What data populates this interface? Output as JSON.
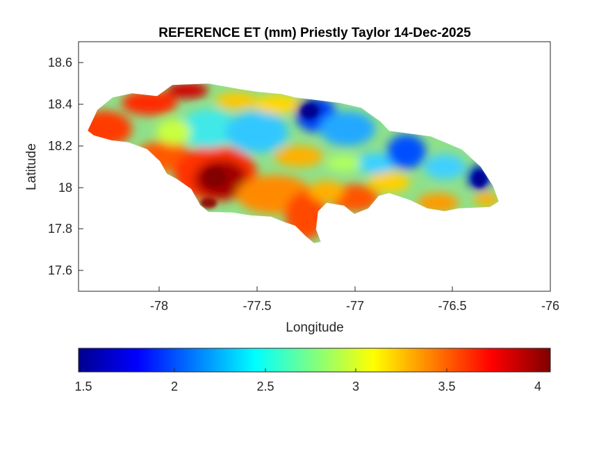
{
  "chart_data": {
    "type": "heatmap",
    "title": "REFERENCE ET (mm) Priestly Taylor 14-Dec-2025",
    "xlabel": "Longitude",
    "ylabel": "Latitude",
    "xlim": [
      -78.42,
      -76.0
    ],
    "ylim": [
      17.5,
      18.7
    ],
    "xticks": [
      "-78",
      "-77.5",
      "-77",
      "-76.5",
      "-76"
    ],
    "yticks": [
      "17.6",
      "17.8",
      "18",
      "18.2",
      "18.4",
      "18.6"
    ],
    "colorbar": {
      "colormap": "jet",
      "range": [
        1.45,
        4.05
      ],
      "ticks": [
        "1.5",
        "2",
        "2.5",
        "3",
        "3.5",
        "4"
      ],
      "placement": "bottom"
    },
    "region": "Jamaica",
    "value_summary": {
      "high_et_areas": "west and south-west (around -77.75, 18.0) up to about 4 mm",
      "low_et_areas": "north-central (around -77.25, 18.4) and east (around -76.3, 18.05) down to about 1.6 mm",
      "typical_range": [
        2.3,
        3.6
      ]
    }
  },
  "colors": {
    "jet_low": "#00008f",
    "jet_mid": "#80ff80",
    "jet_high": "#800000",
    "axes": "#262626",
    "background": "#ffffff"
  }
}
